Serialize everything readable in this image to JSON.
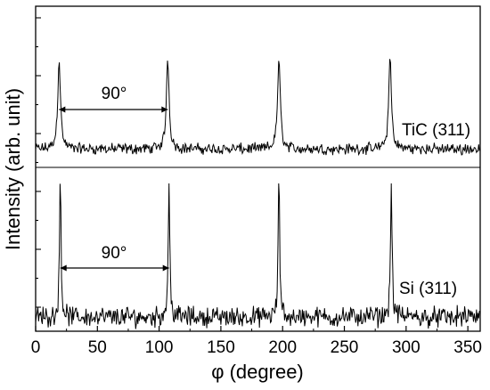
{
  "chart_data": {
    "type": "line",
    "xlabel": "φ (degree)",
    "ylabel": "Intensity (arb. unit)",
    "xlim": [
      0,
      360
    ],
    "xticks": [
      0,
      50,
      100,
      150,
      200,
      250,
      300,
      350
    ],
    "grid": false,
    "series": [
      {
        "name": "TiC (311)",
        "peaks": [
          19,
          107,
          197,
          287
        ],
        "peak_height": 0.88,
        "baseline": 0.08
      },
      {
        "name": "Si (311)",
        "peaks": [
          20,
          108,
          197,
          288
        ],
        "peak_height": 1.0,
        "baseline": 0.1
      }
    ],
    "annotations": [
      {
        "text": "90°",
        "series": "TiC (311)",
        "from": 19,
        "to": 107
      },
      {
        "text": "90°",
        "series": "Si (311)",
        "from": 20,
        "to": 108
      }
    ]
  }
}
